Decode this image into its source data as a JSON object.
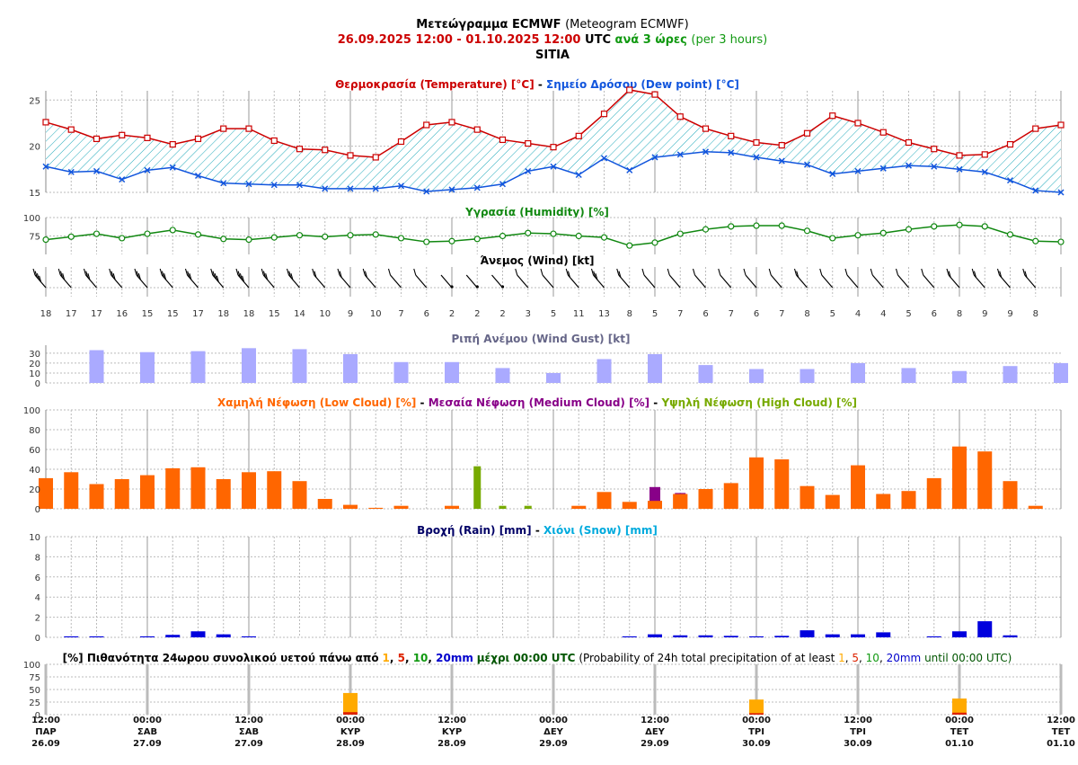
{
  "title": {
    "line1_bold": "Μετεώγραμμα ECMWF",
    "line1_norm": "(Meteogram ECMWF)",
    "period": "26.09.2025 12:00 - 01.10.2025 12:00",
    "utc": "UTC",
    "step_gr": "ανά 3 ώρες",
    "step_en": "(per 3 hours)",
    "location": "SITIA"
  },
  "colors": {
    "temperature": "#cc0000",
    "dew_point": "#1155dd",
    "humidity": "#118811",
    "wind_gust": "#aaaaff",
    "low_cloud": "#ff6600",
    "medium_cloud": "#880088",
    "high_cloud": "#77aa00",
    "rain": "#0000dd",
    "snow": "#00aadd",
    "prob_1mm": "#ffaa00",
    "prob_5mm": "#dd2200",
    "prob_10mm": "#119911",
    "prob_20mm": "#0000cc"
  },
  "panels": {
    "temperature_title_a": "Θερμοκρασία (Temperature) [°C]",
    "temperature_title_sep": "-",
    "temperature_title_b": "Σημείο Δρόσου (Dew point) [°C]",
    "humidity_title": "Υγρασία (Humidity) [%]",
    "wind_title": "Άνεμος (Wind) [kt]",
    "gust_title": "Ριπή Ανέμου (Wind Gust) [kt]",
    "cloud_title_low": "Χαμηλή Νέφωση (Low Cloud) [%]",
    "cloud_title_med": "Μεσαία Νέφωση (Medium Cloud) [%]",
    "cloud_title_high": "Υψηλή Νέφωση (High Cloud) [%]",
    "cloud_title_sep": "-",
    "rain_title_a": "Βροχή (Rain) [mm]",
    "rain_title_sep": "-",
    "rain_title_b": "Χιόνι (Snow) [mm]",
    "prob_title_a": "[%] Πιθανότητα 24ωρου συνολικού υετού πάνω από",
    "prob_title_b": "μέχρι 00:00 UTC",
    "prob_title_c": "(Probability of 24h total precipitation of at least",
    "prob_title_d": "until 00:00 UTC)",
    "prob_thresholds": [
      "1",
      "5",
      "10",
      "20mm"
    ],
    "prob_sep": ", "
  },
  "x_labels": [
    {
      "time": "12:00",
      "day": "ΠΑΡ",
      "date": "26.09"
    },
    {
      "time": "00:00",
      "day": "ΣΑΒ",
      "date": "27.09"
    },
    {
      "time": "12:00",
      "day": "ΣΑΒ",
      "date": "27.09"
    },
    {
      "time": "00:00",
      "day": "ΚΥΡ",
      "date": "28.09"
    },
    {
      "time": "12:00",
      "day": "ΚΥΡ",
      "date": "28.09"
    },
    {
      "time": "00:00",
      "day": "ΔΕΥ",
      "date": "29.09"
    },
    {
      "time": "12:00",
      "day": "ΔΕΥ",
      "date": "29.09"
    },
    {
      "time": "00:00",
      "day": "ΤΡΙ",
      "date": "30.09"
    },
    {
      "time": "12:00",
      "day": "ΤΡΙ",
      "date": "30.09"
    },
    {
      "time": "00:00",
      "day": "ΤΕΤ",
      "date": "01.10"
    },
    {
      "time": "12:00",
      "day": "ΤΕΤ",
      "date": "01.10"
    }
  ],
  "chart_data": [
    {
      "type": "line",
      "panel": "temperature",
      "x_step_hours": 3,
      "ylim": [
        15,
        26
      ],
      "yticks": [
        "15",
        "20",
        "25"
      ],
      "series": [
        {
          "name": "Θερμοκρασία (Temperature) [°C]",
          "values": [
            22.6,
            21.8,
            20.8,
            21.2,
            20.9,
            20.2,
            20.8,
            21.9,
            21.9,
            20.6,
            19.7,
            19.6,
            19.0,
            18.8,
            20.5,
            22.3,
            22.6,
            21.8,
            20.7,
            20.3,
            19.9,
            21.1,
            23.5,
            26.1,
            25.6,
            23.2,
            21.9,
            21.1,
            20.4,
            20.1,
            21.4,
            23.3,
            22.5,
            21.5,
            20.4,
            19.7,
            19.0,
            19.1,
            20.2,
            21.9,
            22.3
          ]
        },
        {
          "name": "Σημείο Δρόσου (Dew point) [°C]",
          "values": [
            17.8,
            17.2,
            17.3,
            16.4,
            17.4,
            17.7,
            16.8,
            16.0,
            15.9,
            15.8,
            15.8,
            15.4,
            15.4,
            15.4,
            15.7,
            15.1,
            15.3,
            15.5,
            15.9,
            17.3,
            17.8,
            16.9,
            18.7,
            17.4,
            18.8,
            19.1,
            19.4,
            19.3,
            18.8,
            18.4,
            18.0,
            17.0,
            17.3,
            17.6,
            17.9,
            17.8,
            17.5,
            17.2,
            16.3,
            15.2,
            15.0
          ]
        }
      ]
    },
    {
      "type": "line",
      "panel": "humidity",
      "x_step_hours": 3,
      "ylim": [
        50,
        100
      ],
      "yticks": [
        "75",
        "100"
      ],
      "series": [
        {
          "name": "Υγρασία (Humidity) [%]",
          "values": [
            70,
            74,
            78,
            72,
            78,
            83,
            77,
            71,
            70,
            73,
            76,
            74,
            76,
            77,
            72,
            67,
            68,
            71,
            75,
            79,
            78,
            75,
            73,
            62,
            66,
            78,
            84,
            88,
            89,
            89,
            82,
            72,
            76,
            79,
            84,
            88,
            90,
            88,
            77,
            68,
            67
          ]
        }
      ]
    },
    {
      "type": "table",
      "panel": "wind",
      "name": "Άνεμος (Wind) [kt]",
      "speeds": [
        "18",
        "17",
        "17",
        "16",
        "15",
        "15",
        "17",
        "18",
        "18",
        "15",
        "14",
        "10",
        "9",
        "10",
        "7",
        "6",
        "2",
        "2",
        "2",
        "3",
        "5",
        "11",
        "13",
        "8",
        "5",
        "7",
        "6",
        "7",
        "6",
        "7",
        "8",
        "5",
        "4",
        "4",
        "5",
        "6",
        "8",
        "9",
        "9",
        "8"
      ]
    },
    {
      "type": "bar",
      "panel": "wind_gust",
      "x_step_hours": 6,
      "ylim": [
        0,
        38
      ],
      "yticks": [
        "0",
        "10",
        "20",
        "30"
      ],
      "series": [
        {
          "name": "Ριπή Ανέμου (Wind Gust) [kt]",
          "values": [
            33,
            31,
            32,
            35,
            34,
            29,
            21,
            21,
            15,
            10,
            24,
            29,
            18,
            14,
            14,
            20,
            15,
            12,
            17,
            20
          ]
        }
      ]
    },
    {
      "type": "bar",
      "panel": "cloud",
      "x_step_hours": 3,
      "ylim": [
        0,
        100
      ],
      "yticks": [
        "0",
        "20",
        "40",
        "60",
        "80",
        "100"
      ],
      "series": [
        {
          "name": "Χαμηλή Νέφωση (Low Cloud) [%]",
          "values": [
            31,
            37,
            25,
            30,
            34,
            41,
            42,
            30,
            37,
            38,
            28,
            10,
            4,
            1,
            3,
            0,
            3,
            0,
            0,
            0,
            0,
            3,
            17,
            7,
            8,
            15,
            20,
            26,
            52,
            50,
            23,
            14,
            44,
            15,
            18,
            31,
            63,
            58,
            28,
            3
          ]
        },
        {
          "name": "Μεσαία Νέφωση (Medium Cloud) [%]",
          "values": [
            0,
            0,
            0,
            0,
            0,
            0,
            0,
            0,
            0,
            0,
            0,
            0,
            0,
            0,
            0,
            0,
            0,
            0,
            0,
            0,
            0,
            0,
            0,
            0,
            22,
            16,
            0,
            0,
            0,
            0,
            0,
            0,
            0,
            0,
            0,
            0,
            0,
            0,
            0,
            0
          ]
        },
        {
          "name": "Υψηλή Νέφωση (High Cloud) [%]",
          "values": [
            0,
            0,
            0,
            0,
            0,
            0,
            0,
            0,
            0,
            0,
            0,
            0,
            0,
            0,
            0,
            0,
            0,
            43,
            3,
            3,
            0,
            0,
            0,
            0,
            0,
            0,
            0,
            0,
            0,
            0,
            0,
            0,
            0,
            0,
            0,
            0,
            0,
            0,
            0,
            0
          ]
        }
      ]
    },
    {
      "type": "bar",
      "panel": "precipitation",
      "x_step_hours": 3,
      "ylim": [
        0,
        10
      ],
      "yticks": [
        "0",
        "2",
        "4",
        "6",
        "8",
        "10"
      ],
      "series": [
        {
          "name": "Βροχή (Rain) [mm]",
          "values": [
            0,
            0.1,
            0.1,
            0,
            0.1,
            0.25,
            0.6,
            0.3,
            0.1,
            0,
            0,
            0,
            0,
            0,
            0,
            0,
            0,
            0,
            0,
            0,
            0,
            0,
            0,
            0.1,
            0.3,
            0.2,
            0.2,
            0.15,
            0.1,
            0.15,
            0.7,
            0.3,
            0.3,
            0.5,
            0,
            0.1,
            0.6,
            1.6,
            0.2,
            0
          ]
        },
        {
          "name": "Χιόνι (Snow) [mm]",
          "values": [
            0,
            0,
            0,
            0,
            0,
            0,
            0,
            0,
            0,
            0,
            0,
            0,
            0,
            0,
            0,
            0,
            0,
            0,
            0,
            0,
            0,
            0,
            0,
            0,
            0,
            0,
            0,
            0,
            0,
            0,
            0,
            0,
            0,
            0,
            0,
            0,
            0,
            0,
            0,
            0
          ]
        }
      ]
    },
    {
      "type": "bar",
      "panel": "probability",
      "ylim": [
        0,
        100
      ],
      "yticks": [
        "0",
        "25",
        "50",
        "75",
        "100"
      ],
      "categories": [
        "28.09",
        "30.09",
        "01.10"
      ],
      "series": [
        {
          "name": "1",
          "values": [
            43,
            30,
            32
          ]
        },
        {
          "name": "5",
          "values": [
            5,
            3,
            4
          ]
        },
        {
          "name": "10",
          "values": [
            0,
            0,
            0
          ]
        },
        {
          "name": "20mm",
          "values": [
            0,
            0,
            0
          ]
        }
      ]
    }
  ]
}
